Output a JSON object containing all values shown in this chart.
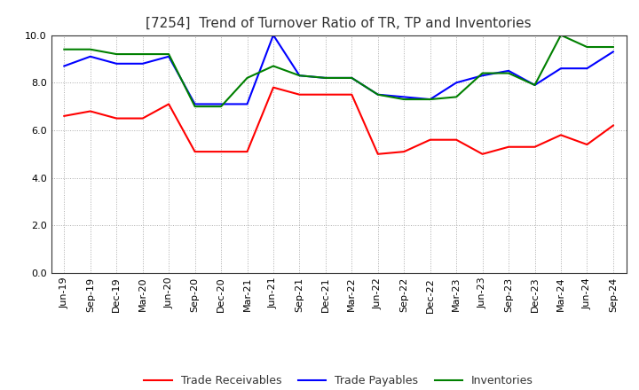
{
  "title": "[7254]  Trend of Turnover Ratio of TR, TP and Inventories",
  "x_labels": [
    "Jun-19",
    "Sep-19",
    "Dec-19",
    "Mar-20",
    "Jun-20",
    "Sep-20",
    "Dec-20",
    "Mar-21",
    "Jun-21",
    "Sep-21",
    "Dec-21",
    "Mar-22",
    "Jun-22",
    "Sep-22",
    "Dec-22",
    "Mar-23",
    "Jun-23",
    "Sep-23",
    "Dec-23",
    "Mar-24",
    "Jun-24",
    "Sep-24"
  ],
  "trade_receivables": [
    6.6,
    6.8,
    6.5,
    6.5,
    7.1,
    5.1,
    5.1,
    5.1,
    7.8,
    7.5,
    7.5,
    7.5,
    5.0,
    5.1,
    5.6,
    5.6,
    5.0,
    5.3,
    5.3,
    5.8,
    5.4,
    6.2
  ],
  "trade_payables": [
    8.7,
    9.1,
    8.8,
    8.8,
    9.1,
    7.1,
    7.1,
    7.1,
    10.0,
    8.3,
    8.2,
    8.2,
    7.5,
    7.4,
    7.3,
    8.0,
    8.3,
    8.5,
    7.9,
    8.6,
    8.6,
    9.3
  ],
  "inventories": [
    9.4,
    9.4,
    9.2,
    9.2,
    9.2,
    7.0,
    7.0,
    8.2,
    8.7,
    8.3,
    8.2,
    8.2,
    7.5,
    7.3,
    7.3,
    7.4,
    8.4,
    8.4,
    7.9,
    10.0,
    9.5,
    9.5
  ],
  "tr_color": "#ff0000",
  "tp_color": "#0000ff",
  "inv_color": "#008000",
  "ylim": [
    0.0,
    10.0
  ],
  "yticks": [
    0.0,
    2.0,
    4.0,
    6.0,
    8.0,
    10.0
  ],
  "background_color": "#ffffff",
  "grid_color": "#aaaaaa",
  "title_fontsize": 11,
  "tick_fontsize": 8,
  "legend_labels": [
    "Trade Receivables",
    "Trade Payables",
    "Inventories"
  ]
}
